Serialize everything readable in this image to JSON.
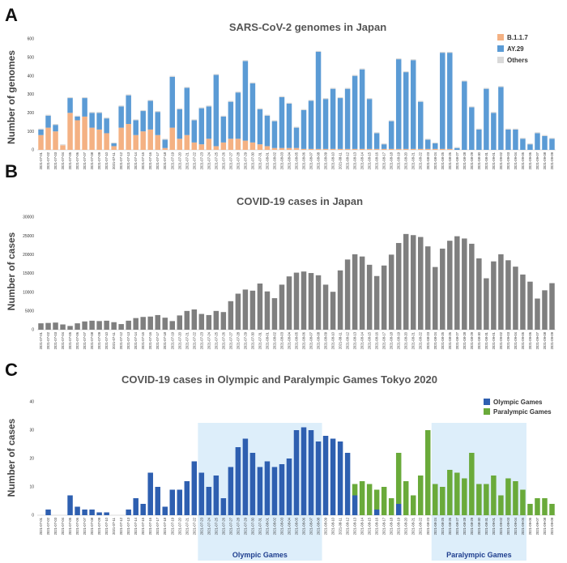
{
  "colors": {
    "b117": "#f4b183",
    "ay29": "#5b9bd5",
    "others": "#d9d9d9",
    "cases": "#7f7f7f",
    "olympic": "#2e5fb0",
    "paralympic": "#6aaa3a",
    "period_fill": "#ddeefa"
  },
  "chart_data": [
    {
      "panel": "A",
      "type": "bar",
      "stacked": true,
      "title": "SARS-CoV-2 genomes in Japan",
      "ylabel": "Number of genomes",
      "ylim": [
        0,
        600
      ],
      "yticks": [
        "0",
        "100",
        "200",
        "300",
        "400",
        "500",
        "600"
      ],
      "legend": [
        "B.1.1.7",
        "AY.29",
        "Others"
      ],
      "legend_position": "top-right",
      "categories": [
        "2021-07-01",
        "2021-07-02",
        "2021-07-03",
        "2021-07-04",
        "2021-07-05",
        "2021-07-06",
        "2021-07-07",
        "2021-07-08",
        "2021-07-09",
        "2021-07-10",
        "2021-07-11",
        "2021-07-12",
        "2021-07-13",
        "2021-07-14",
        "2021-07-15",
        "2021-07-16",
        "2021-07-17",
        "2021-07-18",
        "2021-07-19",
        "2021-07-20",
        "2021-07-21",
        "2021-07-22",
        "2021-07-23",
        "2021-07-24",
        "2021-07-25",
        "2021-07-26",
        "2021-07-27",
        "2021-07-28",
        "2021-07-29",
        "2021-07-30",
        "2021-07-31",
        "2021-08-01",
        "2021-08-02",
        "2021-08-03",
        "2021-08-04",
        "2021-08-05",
        "2021-08-06",
        "2021-08-07",
        "2021-08-08",
        "2021-08-09",
        "2021-08-10",
        "2021-08-11",
        "2021-08-12",
        "2021-08-13",
        "2021-08-14",
        "2021-08-15",
        "2021-08-16",
        "2021-08-17",
        "2021-08-18",
        "2021-08-19",
        "2021-08-20",
        "2021-08-21",
        "2021-08-22",
        "2021-08-23",
        "2021-08-24",
        "2021-08-25",
        "2021-08-26",
        "2021-08-27",
        "2021-08-28",
        "2021-08-29",
        "2021-08-30",
        "2021-08-31",
        "2021-09-01",
        "2021-09-02",
        "2021-09-03",
        "2021-09-04",
        "2021-09-05",
        "2021-09-06",
        "2021-09-07",
        "2021-09-08",
        "2021-09-09"
      ],
      "series": [
        {
          "name": "B.1.1.7",
          "values": [
            80,
            120,
            100,
            25,
            200,
            160,
            180,
            120,
            110,
            90,
            20,
            120,
            140,
            80,
            100,
            110,
            80,
            10,
            120,
            60,
            80,
            40,
            30,
            60,
            20,
            40,
            60,
            60,
            50,
            40,
            30,
            20,
            10,
            10,
            10,
            10,
            5,
            5,
            5,
            5,
            5,
            5,
            5,
            5,
            5,
            5,
            5,
            5,
            5,
            5,
            5,
            5,
            5,
            5,
            5,
            5,
            5,
            0,
            0,
            0,
            0,
            0,
            0,
            0,
            0,
            0,
            0,
            0,
            0,
            0,
            0
          ]
        },
        {
          "name": "AY.29",
          "values": [
            30,
            65,
            35,
            0,
            80,
            20,
            100,
            80,
            90,
            80,
            15,
            115,
            155,
            80,
            110,
            155,
            125,
            45,
            275,
            160,
            255,
            120,
            195,
            175,
            385,
            140,
            200,
            250,
            430,
            320,
            190,
            165,
            145,
            275,
            240,
            110,
            210,
            260,
            525,
            270,
            325,
            275,
            325,
            395,
            430,
            270,
            85,
            25,
            150,
            485,
            415,
            480,
            255,
            50,
            30,
            520,
            520,
            10,
            370,
            230,
            110,
            330,
            200,
            340,
            110,
            110,
            60,
            30,
            90,
            75,
            60
          ]
        },
        {
          "name": "Others",
          "values": [
            5,
            5,
            5,
            5,
            5,
            5,
            5,
            5,
            5,
            5,
            5,
            5,
            5,
            5,
            5,
            5,
            5,
            5,
            5,
            5,
            5,
            5,
            5,
            5,
            5,
            5,
            5,
            5,
            5,
            5,
            5,
            5,
            5,
            5,
            5,
            5,
            5,
            5,
            5,
            5,
            5,
            5,
            5,
            5,
            5,
            5,
            5,
            5,
            5,
            5,
            5,
            5,
            5,
            5,
            5,
            5,
            5,
            5,
            5,
            5,
            5,
            5,
            5,
            5,
            5,
            5,
            5,
            5,
            5,
            5,
            5
          ]
        }
      ]
    },
    {
      "panel": "B",
      "type": "bar",
      "title": "COVID-19 cases in Japan",
      "ylabel": "Number of cases",
      "ylim": [
        0,
        30000
      ],
      "yticks": [
        "0",
        "5000",
        "10000",
        "15000",
        "20000",
        "25000",
        "30000"
      ],
      "categories": [
        "2021-07-01",
        "2021-07-02",
        "2021-07-03",
        "2021-07-04",
        "2021-07-05",
        "2021-07-06",
        "2021-07-07",
        "2021-07-08",
        "2021-07-09",
        "2021-07-10",
        "2021-07-11",
        "2021-07-12",
        "2021-07-13",
        "2021-07-14",
        "2021-07-15",
        "2021-07-16",
        "2021-07-17",
        "2021-07-18",
        "2021-07-19",
        "2021-07-20",
        "2021-07-21",
        "2021-07-22",
        "2021-07-23",
        "2021-07-24",
        "2021-07-25",
        "2021-07-26",
        "2021-07-27",
        "2021-07-28",
        "2021-07-29",
        "2021-07-30",
        "2021-07-31",
        "2021-08-01",
        "2021-08-02",
        "2021-08-03",
        "2021-08-04",
        "2021-08-05",
        "2021-08-06",
        "2021-08-07",
        "2021-08-08",
        "2021-08-09",
        "2021-08-10",
        "2021-08-11",
        "2021-08-12",
        "2021-08-13",
        "2021-08-14",
        "2021-08-15",
        "2021-08-16",
        "2021-08-17",
        "2021-08-18",
        "2021-08-19",
        "2021-08-20",
        "2021-08-21",
        "2021-08-22",
        "2021-08-23",
        "2021-08-24",
        "2021-08-25",
        "2021-08-26",
        "2021-08-27",
        "2021-08-28",
        "2021-08-29",
        "2021-08-30",
        "2021-08-31",
        "2021-09-01",
        "2021-09-02",
        "2021-09-03",
        "2021-09-04",
        "2021-09-05",
        "2021-09-06",
        "2021-09-07",
        "2021-09-08",
        "2021-09-09"
      ],
      "values": [
        1700,
        1800,
        1900,
        1400,
        1000,
        1700,
        2200,
        2400,
        2300,
        2400,
        2000,
        1500,
        2400,
        3100,
        3400,
        3500,
        3900,
        3200,
        2300,
        3800,
        5000,
        5400,
        4200,
        3900,
        5000,
        4700,
        7600,
        9600,
        10700,
        10400,
        12300,
        10200,
        8400,
        12000,
        14200,
        15200,
        15500,
        15100,
        14500,
        12000,
        10100,
        15800,
        18700,
        20100,
        19500,
        17300,
        14300,
        17100,
        20000,
        23100,
        25500,
        25200,
        24700,
        22200,
        16700,
        21600,
        23700,
        24900,
        24300,
        22900,
        19000,
        13700,
        18200,
        20100,
        18500,
        16800,
        14700,
        12800,
        8300,
        10500,
        12400
      ]
    },
    {
      "panel": "C",
      "type": "bar",
      "title": "COVID-19 cases in Olympic and Paralympic Games Tokyo 2020",
      "ylabel": "Number of cases",
      "ylim": [
        0,
        40
      ],
      "yticks": [
        "0",
        "10",
        "20",
        "30",
        "40"
      ],
      "legend": [
        "Olympic Games",
        "Paralympic Games"
      ],
      "legend_position": "top-right",
      "period_labels": [
        "Olympic Games",
        "Paralympic Games"
      ],
      "periods": [
        {
          "label": "Olympic Games",
          "start": "2021-07-23",
          "end": "2021-08-08"
        },
        {
          "label": "Paralympic Games",
          "start": "2021-08-24",
          "end": "2021-09-05"
        }
      ],
      "categories": [
        "2021-07-01",
        "2021-07-02",
        "2021-07-03",
        "2021-07-04",
        "2021-07-05",
        "2021-07-06",
        "2021-07-07",
        "2021-07-08",
        "2021-07-09",
        "2021-07-10",
        "2021-07-11",
        "2021-07-12",
        "2021-07-13",
        "2021-07-14",
        "2021-07-15",
        "2021-07-16",
        "2021-07-17",
        "2021-07-18",
        "2021-07-19",
        "2021-07-20",
        "2021-07-21",
        "2021-07-22",
        "2021-07-23",
        "2021-07-24",
        "2021-07-25",
        "2021-07-26",
        "2021-07-27",
        "2021-07-28",
        "2021-07-29",
        "2021-07-30",
        "2021-07-31",
        "2021-08-01",
        "2021-08-02",
        "2021-08-03",
        "2021-08-04",
        "2021-08-05",
        "2021-08-06",
        "2021-08-07",
        "2021-08-08",
        "2021-08-09",
        "2021-08-10",
        "2021-08-11",
        "2021-08-12",
        "2021-08-13",
        "2021-08-14",
        "2021-08-15",
        "2021-08-16",
        "2021-08-17",
        "2021-08-18",
        "2021-08-19",
        "2021-08-20",
        "2021-08-21",
        "2021-08-22",
        "2021-08-23",
        "2021-08-24",
        "2021-08-25",
        "2021-08-26",
        "2021-08-27",
        "2021-08-28",
        "2021-08-29",
        "2021-08-30",
        "2021-08-31",
        "2021-09-01",
        "2021-09-02",
        "2021-09-03",
        "2021-09-04",
        "2021-09-05",
        "2021-09-06",
        "2021-09-07",
        "2021-09-08",
        "2021-09-09"
      ],
      "series": [
        {
          "name": "Olympic Games",
          "values": [
            0,
            2,
            0,
            0,
            7,
            3,
            2,
            2,
            1,
            1,
            0,
            0,
            2,
            6,
            4,
            15,
            10,
            3,
            9,
            9,
            12,
            19,
            15,
            10,
            14,
            6,
            17,
            24,
            27,
            22,
            17,
            19,
            17,
            18,
            20,
            30,
            31,
            30,
            26,
            28,
            27,
            26,
            22,
            7,
            0,
            0,
            2,
            0,
            0,
            4,
            0,
            0,
            0,
            0,
            0,
            0,
            0,
            0,
            0,
            0,
            0,
            0,
            0,
            0,
            0,
            0,
            0,
            0,
            0,
            0,
            0
          ]
        },
        {
          "name": "Paralympic Games",
          "values": [
            0,
            0,
            0,
            0,
            0,
            0,
            0,
            0,
            0,
            0,
            0,
            0,
            0,
            0,
            0,
            0,
            0,
            0,
            0,
            0,
            0,
            0,
            0,
            0,
            0,
            0,
            0,
            0,
            0,
            0,
            0,
            0,
            0,
            0,
            0,
            0,
            0,
            0,
            0,
            0,
            0,
            0,
            0,
            4,
            12,
            11,
            7,
            10,
            6,
            18,
            12,
            7,
            14,
            30,
            11,
            10,
            16,
            15,
            13,
            22,
            11,
            11,
            14,
            7,
            13,
            12,
            9,
            4,
            6,
            6,
            4
          ]
        }
      ]
    }
  ]
}
